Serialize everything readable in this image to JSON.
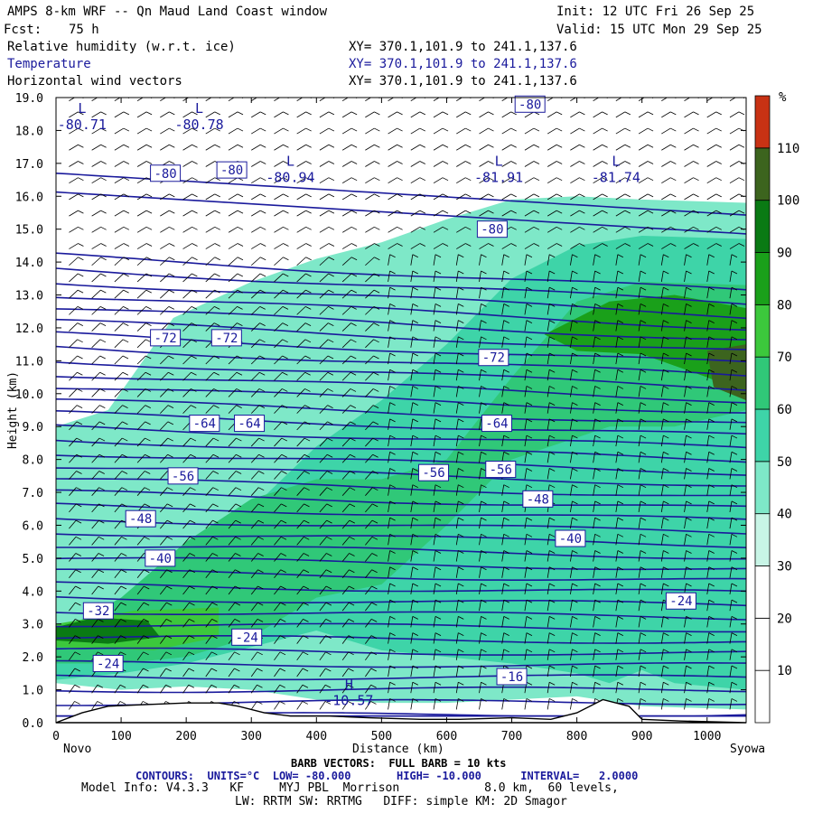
{
  "header": {
    "title": "AMPS 8-km WRF -- Qn Maud Land Coast window",
    "init": "Init: 12 UTC Fri 26 Sep 25",
    "fcst_label": "Fcst:",
    "fcst_value": "75 h",
    "valid": "Valid: 15 UTC Mon 29 Sep 25",
    "fields": [
      {
        "name": "Relative humidity (w.r.t. ice)",
        "xy": "XY= 370.1,101.9 to 241.1,137.6",
        "color": "#000000"
      },
      {
        "name": "Temperature",
        "xy": "XY= 370.1,101.9 to 241.1,137.6",
        "color": "#1a1a9c"
      },
      {
        "name": "Horizontal wind vectors",
        "xy": "XY= 370.1,101.9 to 241.1,137.6",
        "color": "#000000"
      }
    ]
  },
  "chart_data": {
    "type": "heatmap",
    "title": "Cross-section: relative humidity (w.r.t. ice), temperature, horizontal wind",
    "xlabel": "Distance (km)",
    "ylabel": "Height (km)",
    "xlim": [
      0,
      1060
    ],
    "ylim": [
      0,
      19
    ],
    "x_ticks": [
      0,
      100,
      200,
      300,
      400,
      500,
      600,
      700,
      800,
      900,
      1000
    ],
    "y_ticks": [
      "0.0",
      "1.0",
      "2.0",
      "3.0",
      "4.0",
      "5.0",
      "6.0",
      "7.0",
      "8.0",
      "9.0",
      "10.0",
      "11.0",
      "12.0",
      "13.0",
      "14.0",
      "15.0",
      "16.0",
      "17.0",
      "18.0",
      "19.0"
    ],
    "endpoints": {
      "left": "Novo",
      "right": "Syowa"
    },
    "colorbar": {
      "unit": "%",
      "levels": [
        10,
        20,
        30,
        40,
        50,
        60,
        70,
        80,
        90,
        100,
        110
      ],
      "colors": [
        "#ffffff",
        "#ffffff",
        "#ffffff",
        "#c8f5e6",
        "#7ee8c8",
        "#3ed4a8",
        "#30c878",
        "#3cc83c",
        "#1aa01a",
        "#0a7a14",
        "#3c641e",
        "#c83214"
      ]
    },
    "rh_regions": [
      {
        "level": 40,
        "polygon": [
          [
            0,
            9
          ],
          [
            80,
            9.5
          ],
          [
            180,
            12.3
          ],
          [
            300,
            13.4
          ],
          [
            400,
            14.1
          ],
          [
            500,
            14.6
          ],
          [
            600,
            15.3
          ],
          [
            700,
            15.9
          ],
          [
            800,
            16
          ],
          [
            900,
            15.9
          ],
          [
            1060,
            15.8
          ],
          [
            1060,
            0.4
          ],
          [
            900,
            0.5
          ],
          [
            800,
            0.8
          ],
          [
            700,
            0.7
          ],
          [
            600,
            0.6
          ],
          [
            500,
            0.6
          ],
          [
            400,
            0.7
          ],
          [
            300,
            1.0
          ],
          [
            200,
            1.1
          ],
          [
            100,
            1.0
          ],
          [
            0,
            1.2
          ]
        ]
      },
      {
        "level": 50,
        "polygon": [
          [
            0,
            2.2
          ],
          [
            100,
            3.2
          ],
          [
            200,
            4.8
          ],
          [
            300,
            6.5
          ],
          [
            400,
            8.4
          ],
          [
            500,
            9.8
          ],
          [
            600,
            11.5
          ],
          [
            700,
            13.5
          ],
          [
            800,
            14.5
          ],
          [
            900,
            14.8
          ],
          [
            1060,
            14.7
          ],
          [
            1060,
            1.0
          ],
          [
            950,
            1.2
          ],
          [
            900,
            1.6
          ],
          [
            850,
            1.2
          ],
          [
            800,
            1.5
          ],
          [
            700,
            1.8
          ],
          [
            600,
            2.0
          ],
          [
            500,
            2.2
          ],
          [
            400,
            2.8
          ],
          [
            300,
            2.3
          ],
          [
            200,
            1.8
          ],
          [
            100,
            1.5
          ],
          [
            0,
            1.3
          ]
        ]
      },
      {
        "level": 60,
        "polygon": [
          [
            0,
            2.7
          ],
          [
            100,
            3.8
          ],
          [
            200,
            5.5
          ],
          [
            300,
            6.8
          ],
          [
            400,
            7.4
          ],
          [
            500,
            7.4
          ],
          [
            600,
            8.0
          ],
          [
            700,
            10.5
          ],
          [
            800,
            12.8
          ],
          [
            900,
            13.4
          ],
          [
            1060,
            13.3
          ],
          [
            1060,
            9.5
          ],
          [
            950,
            9.0
          ],
          [
            850,
            9.0
          ],
          [
            700,
            8.0
          ],
          [
            600,
            6.0
          ],
          [
            500,
            4.2
          ],
          [
            400,
            3.8
          ],
          [
            300,
            2.6
          ],
          [
            200,
            2.0
          ],
          [
            100,
            1.8
          ],
          [
            0,
            1.8
          ]
        ]
      },
      {
        "level": 70,
        "polygon": [
          [
            0,
            3.0
          ],
          [
            120,
            3.4
          ],
          [
            250,
            3.5
          ],
          [
            250,
            2.6
          ],
          [
            150,
            2.2
          ],
          [
            0,
            2.3
          ]
        ]
      },
      {
        "level": 80,
        "polygon": [
          [
            750,
            11.8
          ],
          [
            850,
            12.8
          ],
          [
            950,
            13.0
          ],
          [
            1060,
            12.6
          ],
          [
            1060,
            10.0
          ],
          [
            1000,
            10.5
          ],
          [
            900,
            11.2
          ],
          [
            800,
            11.3
          ]
        ]
      },
      {
        "level": 90,
        "polygon": [
          [
            0,
            2.9
          ],
          [
            60,
            3.2
          ],
          [
            140,
            3.1
          ],
          [
            160,
            2.6
          ],
          [
            80,
            2.4
          ],
          [
            0,
            2.5
          ]
        ]
      },
      {
        "level": 100,
        "polygon": [
          [
            1000,
            11.3
          ],
          [
            1060,
            11.5
          ],
          [
            1060,
            9.8
          ],
          [
            1010,
            10.2
          ]
        ]
      }
    ],
    "temperature_contours": {
      "units": "°C",
      "low": -80.0,
      "high": -10.0,
      "interval": 2.0,
      "labels": [
        {
          "text": "-80",
          "x": 168,
          "y": 16.7
        },
        {
          "text": "-80",
          "x": 270,
          "y": 16.8
        },
        {
          "text": "-80",
          "x": 670,
          "y": 15.0
        },
        {
          "text": "-80",
          "x": 728,
          "y": 18.8
        },
        {
          "text": "-72",
          "x": 168,
          "y": 11.7
        },
        {
          "text": "-72",
          "x": 262,
          "y": 11.7
        },
        {
          "text": "-72",
          "x": 672,
          "y": 11.1
        },
        {
          "text": "-64",
          "x": 228,
          "y": 9.1
        },
        {
          "text": "-64",
          "x": 297,
          "y": 9.1
        },
        {
          "text": "-64",
          "x": 677,
          "y": 9.1
        },
        {
          "text": "-56",
          "x": 195,
          "y": 7.5
        },
        {
          "text": "-56",
          "x": 580,
          "y": 7.6
        },
        {
          "text": "-56",
          "x": 683,
          "y": 7.7
        },
        {
          "text": "-48",
          "x": 130,
          "y": 6.2
        },
        {
          "text": "-48",
          "x": 740,
          "y": 6.8
        },
        {
          "text": "-40",
          "x": 160,
          "y": 5.0
        },
        {
          "text": "-40",
          "x": 790,
          "y": 5.6
        },
        {
          "text": "-32",
          "x": 65,
          "y": 3.4
        },
        {
          "text": "-24",
          "x": 293,
          "y": 2.6
        },
        {
          "text": "-24",
          "x": 960,
          "y": 3.7
        },
        {
          "text": "-24",
          "x": 80,
          "y": 1.8
        },
        {
          "text": "-16",
          "x": 700,
          "y": 1.4
        }
      ],
      "extrema": [
        {
          "type": "L",
          "value": "-80.71",
          "x": 40,
          "y": 18.2
        },
        {
          "type": "L",
          "value": "-80.78",
          "x": 220,
          "y": 18.2
        },
        {
          "type": "L",
          "value": "-80.94",
          "x": 360,
          "y": 16.6
        },
        {
          "type": "L",
          "value": "-81.91",
          "x": 680,
          "y": 16.6
        },
        {
          "type": "L",
          "value": "-81.74",
          "x": 860,
          "y": 16.6
        },
        {
          "type": "H",
          "value": "-10.57",
          "x": 450,
          "y": 0.7
        }
      ]
    },
    "terrain": [
      [
        0,
        0
      ],
      [
        40,
        0.3
      ],
      [
        80,
        0.5
      ],
      [
        140,
        0.55
      ],
      [
        200,
        0.6
      ],
      [
        250,
        0.6
      ],
      [
        280,
        0.5
      ],
      [
        320,
        0.3
      ],
      [
        360,
        0.2
      ],
      [
        420,
        0.2
      ],
      [
        480,
        0.15
      ],
      [
        560,
        0.1
      ],
      [
        620,
        0.1
      ],
      [
        700,
        0.15
      ],
      [
        760,
        0.1
      ],
      [
        800,
        0.3
      ],
      [
        840,
        0.7
      ],
      [
        880,
        0.5
      ],
      [
        900,
        0.1
      ],
      [
        960,
        0.05
      ],
      [
        1060,
        0
      ]
    ],
    "wind_vectors": {
      "label": "BARB VECTORS:  FULL BARB = 10 kts"
    }
  },
  "footer": {
    "xaxis_label": "Distance (km)",
    "left_endpoint": "Novo",
    "right_endpoint": "Syowa",
    "barb_line": "BARB VECTORS:  FULL BARB = 10 kts",
    "contours_line": "CONTOURS:  UNITS=°C  LOW= -80.000       HIGH= -10.000      INTERVAL=   2.0000",
    "model_line1": "Model Info: V4.3.3   KF     MYJ PBL  Morrison            8.0 km,  60 levels,",
    "model_line2": "LW: RRTM SW: RRTMG   DIFF: simple KM: 2D Smagor"
  }
}
